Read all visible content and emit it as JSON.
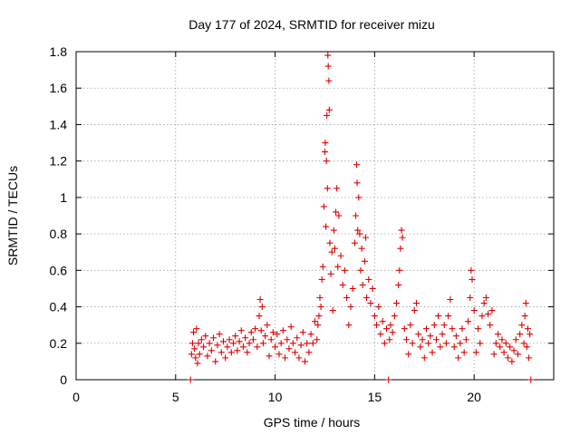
{
  "chart_data": {
    "type": "scatter",
    "title": "Day 177 of 2024, SRMTID for receiver mizu",
    "xlabel": "GPS time / hours",
    "ylabel": "SRMTID / TECUs",
    "xlim": [
      0,
      24
    ],
    "ylim": [
      0,
      1.8
    ],
    "x_ticks": [
      0,
      5,
      10,
      15,
      20
    ],
    "x_tick_labels": [
      "0",
      "5",
      "10",
      "15",
      "20"
    ],
    "y_ticks": [
      0,
      0.2,
      0.4,
      0.6,
      0.8,
      1,
      1.2,
      1.4,
      1.6,
      1.8
    ],
    "y_tick_labels": [
      "0",
      "0.2",
      "0.4",
      "0.6",
      "0.8",
      "1",
      "1.2",
      "1.4",
      "1.6",
      "1.8"
    ],
    "grid": true,
    "marker": "plus",
    "color": "#e00000",
    "series": [
      {
        "name": "SRMTID",
        "points": [
          [
            5.75,
            0.0
          ],
          [
            5.8,
            0.14
          ],
          [
            5.85,
            0.2
          ],
          [
            5.9,
            0.26
          ],
          [
            5.95,
            0.17
          ],
          [
            6.0,
            0.12
          ],
          [
            6.05,
            0.28
          ],
          [
            6.1,
            0.09
          ],
          [
            6.15,
            0.2
          ],
          [
            6.2,
            0.14
          ],
          [
            6.3,
            0.22
          ],
          [
            6.4,
            0.18
          ],
          [
            6.5,
            0.24
          ],
          [
            6.6,
            0.13
          ],
          [
            6.7,
            0.2
          ],
          [
            6.8,
            0.16
          ],
          [
            6.9,
            0.23
          ],
          [
            7.0,
            0.1
          ],
          [
            7.1,
            0.19
          ],
          [
            7.2,
            0.25
          ],
          [
            7.3,
            0.15
          ],
          [
            7.4,
            0.21
          ],
          [
            7.5,
            0.12
          ],
          [
            7.6,
            0.18
          ],
          [
            7.7,
            0.22
          ],
          [
            7.8,
            0.15
          ],
          [
            7.9,
            0.2
          ],
          [
            8.0,
            0.24
          ],
          [
            8.1,
            0.16
          ],
          [
            8.2,
            0.21
          ],
          [
            8.3,
            0.27
          ],
          [
            8.4,
            0.18
          ],
          [
            8.5,
            0.23
          ],
          [
            8.6,
            0.15
          ],
          [
            8.7,
            0.2
          ],
          [
            8.8,
            0.26
          ],
          [
            8.9,
            0.22
          ],
          [
            9.0,
            0.28
          ],
          [
            9.1,
            0.18
          ],
          [
            9.2,
            0.35
          ],
          [
            9.25,
            0.44
          ],
          [
            9.3,
            0.27
          ],
          [
            9.35,
            0.4
          ],
          [
            9.4,
            0.2
          ],
          [
            9.5,
            0.24
          ],
          [
            9.6,
            0.3
          ],
          [
            9.7,
            0.13
          ],
          [
            9.8,
            0.22
          ],
          [
            9.9,
            0.26
          ],
          [
            10.0,
            0.18
          ],
          [
            10.1,
            0.25
          ],
          [
            10.2,
            0.14
          ],
          [
            10.3,
            0.2
          ],
          [
            10.4,
            0.27
          ],
          [
            10.5,
            0.12
          ],
          [
            10.6,
            0.22
          ],
          [
            10.7,
            0.17
          ],
          [
            10.8,
            0.29
          ],
          [
            10.9,
            0.2
          ],
          [
            11.0,
            0.15
          ],
          [
            11.1,
            0.23
          ],
          [
            11.2,
            0.12
          ],
          [
            11.3,
            0.19
          ],
          [
            11.4,
            0.26
          ],
          [
            11.5,
            0.1
          ],
          [
            11.6,
            0.2
          ],
          [
            11.7,
            0.15
          ],
          [
            11.8,
            0.25
          ],
          [
            11.9,
            0.2
          ],
          [
            12.0,
            0.32
          ],
          [
            12.1,
            0.22
          ],
          [
            12.15,
            0.3
          ],
          [
            12.2,
            0.35
          ],
          [
            12.25,
            0.45
          ],
          [
            12.3,
            0.4
          ],
          [
            12.35,
            0.55
          ],
          [
            12.4,
            0.62
          ],
          [
            12.45,
            0.95
          ],
          [
            12.5,
            1.25
          ],
          [
            12.52,
            1.3
          ],
          [
            12.55,
            0.84
          ],
          [
            12.58,
            1.2
          ],
          [
            12.6,
            1.45
          ],
          [
            12.63,
            1.05
          ],
          [
            12.65,
            1.78
          ],
          [
            12.67,
            1.72
          ],
          [
            12.7,
            1.64
          ],
          [
            12.72,
            1.48
          ],
          [
            12.75,
            0.75
          ],
          [
            12.8,
            0.58
          ],
          [
            12.85,
            0.7
          ],
          [
            12.9,
            0.38
          ],
          [
            12.95,
            0.82
          ],
          [
            13.0,
            0.72
          ],
          [
            13.05,
            0.92
          ],
          [
            13.1,
            1.05
          ],
          [
            13.15,
            0.62
          ],
          [
            13.2,
            0.9
          ],
          [
            13.3,
            0.68
          ],
          [
            13.4,
            0.52
          ],
          [
            13.5,
            0.6
          ],
          [
            13.6,
            0.45
          ],
          [
            13.7,
            0.3
          ],
          [
            13.8,
            0.4
          ],
          [
            13.9,
            0.5
          ],
          [
            14.0,
            0.75
          ],
          [
            14.05,
            0.9
          ],
          [
            14.1,
            1.18
          ],
          [
            14.12,
            1.08
          ],
          [
            14.15,
            0.82
          ],
          [
            14.2,
            1.0
          ],
          [
            14.25,
            0.8
          ],
          [
            14.3,
            0.6
          ],
          [
            14.35,
            0.72
          ],
          [
            14.4,
            0.52
          ],
          [
            14.5,
            0.65
          ],
          [
            14.55,
            0.78
          ],
          [
            14.6,
            0.45
          ],
          [
            14.7,
            0.55
          ],
          [
            14.8,
            0.42
          ],
          [
            14.9,
            0.5
          ],
          [
            15.0,
            0.35
          ],
          [
            15.1,
            0.3
          ],
          [
            15.2,
            0.4
          ],
          [
            15.3,
            0.25
          ],
          [
            15.4,
            0.32
          ],
          [
            15.5,
            0.2
          ],
          [
            15.6,
            0.28
          ],
          [
            15.7,
            0.0
          ],
          [
            15.75,
            0.22
          ],
          [
            15.8,
            0.3
          ],
          [
            15.9,
            0.26
          ],
          [
            16.0,
            0.35
          ],
          [
            16.1,
            0.42
          ],
          [
            16.2,
            0.52
          ],
          [
            16.25,
            0.6
          ],
          [
            16.3,
            0.72
          ],
          [
            16.35,
            0.82
          ],
          [
            16.4,
            0.78
          ],
          [
            16.5,
            0.28
          ],
          [
            16.6,
            0.22
          ],
          [
            16.7,
            0.14
          ],
          [
            16.8,
            0.3
          ],
          [
            16.9,
            0.2
          ],
          [
            17.0,
            0.38
          ],
          [
            17.1,
            0.42
          ],
          [
            17.2,
            0.25
          ],
          [
            17.3,
            0.18
          ],
          [
            17.4,
            0.22
          ],
          [
            17.5,
            0.12
          ],
          [
            17.6,
            0.28
          ],
          [
            17.7,
            0.2
          ],
          [
            17.8,
            0.24
          ],
          [
            17.9,
            0.15
          ],
          [
            18.0,
            0.3
          ],
          [
            18.1,
            0.22
          ],
          [
            18.2,
            0.35
          ],
          [
            18.3,
            0.18
          ],
          [
            18.4,
            0.25
          ],
          [
            18.5,
            0.3
          ],
          [
            18.6,
            0.2
          ],
          [
            18.7,
            0.35
          ],
          [
            18.8,
            0.44
          ],
          [
            18.9,
            0.28
          ],
          [
            19.0,
            0.18
          ],
          [
            19.1,
            0.24
          ],
          [
            19.2,
            0.12
          ],
          [
            19.3,
            0.2
          ],
          [
            19.4,
            0.28
          ],
          [
            19.5,
            0.15
          ],
          [
            19.6,
            0.22
          ],
          [
            19.7,
            0.32
          ],
          [
            19.8,
            0.45
          ],
          [
            19.85,
            0.6
          ],
          [
            19.9,
            0.55
          ],
          [
            20.0,
            0.38
          ],
          [
            20.1,
            0.15
          ],
          [
            20.2,
            0.28
          ],
          [
            20.3,
            0.2
          ],
          [
            20.4,
            0.35
          ],
          [
            20.5,
            0.42
          ],
          [
            20.6,
            0.45
          ],
          [
            20.7,
            0.36
          ],
          [
            20.8,
            0.3
          ],
          [
            20.9,
            0.38
          ],
          [
            21.0,
            0.14
          ],
          [
            21.1,
            0.2
          ],
          [
            21.2,
            0.25
          ],
          [
            21.3,
            0.18
          ],
          [
            21.4,
            0.22
          ],
          [
            21.5,
            0.15
          ],
          [
            21.6,
            0.2
          ],
          [
            21.7,
            0.12
          ],
          [
            21.8,
            0.18
          ],
          [
            21.9,
            0.1
          ],
          [
            22.0,
            0.16
          ],
          [
            22.1,
            0.22
          ],
          [
            22.2,
            0.14
          ],
          [
            22.3,
            0.25
          ],
          [
            22.4,
            0.3
          ],
          [
            22.5,
            0.2
          ],
          [
            22.55,
            0.35
          ],
          [
            22.6,
            0.42
          ],
          [
            22.65,
            0.18
          ],
          [
            22.7,
            0.28
          ],
          [
            22.75,
            0.12
          ],
          [
            22.8,
            0.25
          ],
          [
            22.85,
            0.0
          ]
        ]
      }
    ]
  }
}
